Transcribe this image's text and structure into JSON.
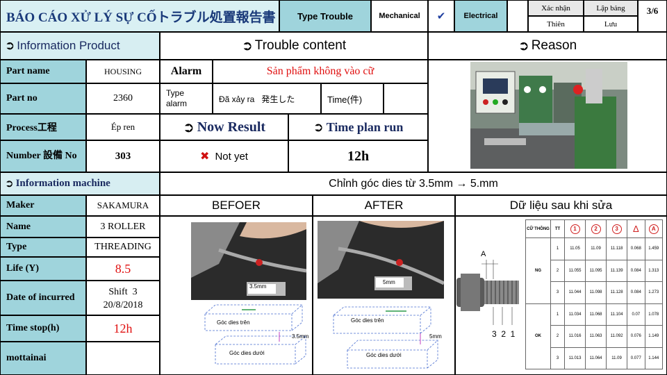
{
  "header": {
    "title": "BÁO CÁO XỬ LÝ SỰ CỐトラブル処置報告書",
    "type_trouble": "Type Trouble",
    "mechanical": "Mechanical",
    "check_mark": "✔",
    "electrical": "Electrical",
    "confirm_label": "Xác nhận",
    "creator_label": "Lập bảng",
    "confirm_name": "Thiên",
    "creator_name": "Lưu",
    "page": "3/6"
  },
  "sections": {
    "info_product": "Information Product",
    "trouble_content": "Trouble content",
    "reason": "Reason",
    "now_result": "Now Result",
    "time_plan_run": "Time plan run",
    "info_machine": "Information machine"
  },
  "product": {
    "part_name_label": "Part name",
    "part_name_value": "HOUSING",
    "part_no_label": "Part no",
    "part_no_value": "2360",
    "process_label": "Process工程",
    "process_value": "Ép ren",
    "number_label": "Number 設備 No",
    "number_value": "303"
  },
  "trouble": {
    "alarm_label": "Alarm",
    "alarm_value": "Sản phẩm không vào cữ",
    "type_alarm_label": "Type alarm",
    "occurred_label": "Đã xảy ra   発生した",
    "time_label": "Time(件)",
    "result_value": "Not yet",
    "result_icon": "✖",
    "plan_value": "12h",
    "change_text": "Chỉnh góc dies từ 3.5mm → 5.mm"
  },
  "machine": {
    "maker_label": "Maker",
    "maker_value": "SAKAMURA",
    "name_label": "Name",
    "name_value": "3 ROLLER",
    "type_label": "Type",
    "type_value": "THREADING",
    "life_label": "Life (Y)",
    "life_value": "8.5",
    "date_label": "Date of incurred",
    "date_shift": "Shift  3",
    "date_value": "20/8/2018",
    "stop_label": "Time stop(h)",
    "stop_value": "12h",
    "mottainai_label": "mottainai"
  },
  "compare": {
    "before_label": "BEFOER",
    "after_label": "AFTER",
    "data_label": "Dữ liệu sau khi sửa",
    "before_measure": "3.5mm",
    "after_measure": "5mm",
    "upper_die": "Góc dies trên",
    "lower_die": "Góc dies dưới",
    "before_gap": "3.5mm",
    "after_gap": "5mm",
    "part_marker": "A",
    "part_numbers": "3  2  1"
  },
  "measure_table": {
    "headers": [
      "CỮ THÔNG",
      "TT",
      "1",
      "2",
      "3",
      "Δ",
      "A"
    ],
    "groups": [
      {
        "name": "NG",
        "rows": [
          [
            "1",
            "11.05",
            "11.09",
            "11.118",
            "0.068",
            "1.459"
          ],
          [
            "2",
            "11.055",
            "11.095",
            "11.139",
            "0.084",
            "1.313"
          ],
          [
            "3",
            "11.044",
            "11.098",
            "11.128",
            "0.084",
            "1.273"
          ]
        ]
      },
      {
        "name": "OK",
        "rows": [
          [
            "1",
            "11.034",
            "11.068",
            "11.104",
            "0.07",
            "1.078"
          ],
          [
            "2",
            "11.016",
            "11.063",
            "11.092",
            "0.076",
            "1.149"
          ],
          [
            "3",
            "11.013",
            "11.064",
            "11.09",
            "0.077",
            "1.144"
          ]
        ]
      }
    ]
  }
}
